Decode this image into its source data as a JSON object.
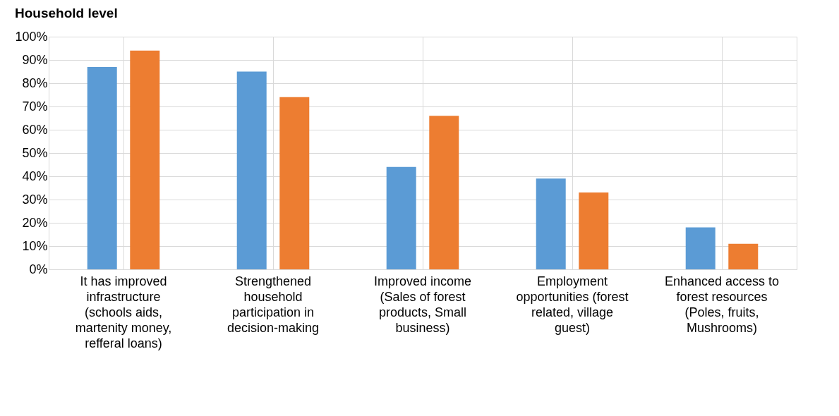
{
  "chart_data": {
    "type": "bar",
    "title": "Household level",
    "categories": [
      "It has improved infrastructure (schools aids, martenity money, refferal loans)",
      "Strengthened household participation in decision-making",
      "Improved income (Sales of forest products, Small business)",
      "Employment opportunities (forest related, village guest)",
      "Enhanced access to forest resources (Poles, fruits, Mushrooms)"
    ],
    "series": [
      {
        "color": "#5b9bd5",
        "values": [
          87,
          85,
          44,
          39,
          18
        ]
      },
      {
        "color": "#ed7d31",
        "values": [
          94,
          74,
          66,
          33,
          11
        ]
      }
    ],
    "ylim": [
      0,
      100
    ],
    "yticks": [
      {
        "value": 0,
        "label": "0%"
      },
      {
        "value": 10,
        "label": "10%"
      },
      {
        "value": 20,
        "label": "20%"
      },
      {
        "value": 30,
        "label": "30%"
      },
      {
        "value": 40,
        "label": "40%"
      },
      {
        "value": 50,
        "label": "50%"
      },
      {
        "value": 60,
        "label": "60%"
      },
      {
        "value": 70,
        "label": "70%"
      },
      {
        "value": 80,
        "label": "80%"
      },
      {
        "value": 90,
        "label": "90%"
      },
      {
        "value": 100,
        "label": "100%"
      }
    ],
    "grid": true,
    "legend": false
  }
}
